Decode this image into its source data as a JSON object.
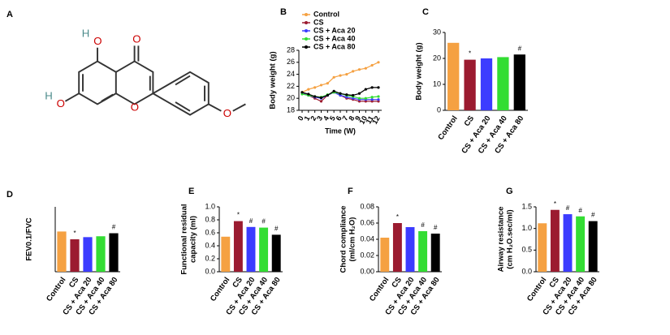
{
  "panel_labels": [
    "A",
    "B",
    "C",
    "D",
    "E",
    "F",
    "G"
  ],
  "structure": {
    "atoms": [
      "O",
      "O",
      "H",
      "O",
      "H",
      "O",
      "O"
    ]
  },
  "chart_data": [
    {
      "type": "line",
      "xlabel": "Time (W)",
      "ylabel": [
        "Body weight (g)"
      ],
      "x": [
        0,
        1,
        2,
        3,
        4,
        5,
        6,
        7,
        8,
        9,
        10,
        11,
        12
      ],
      "xlim": [
        0,
        12
      ],
      "xticks": [
        0,
        1,
        2,
        3,
        4,
        5,
        6,
        7,
        8,
        9,
        10,
        11,
        12
      ],
      "ylim": [
        18,
        28
      ],
      "yticks": [
        18,
        20,
        22,
        24,
        26,
        28
      ],
      "series": [
        {
          "name": "Control",
          "color": "#f5a142",
          "values": [
            21,
            21.5,
            21.8,
            22.2,
            22.5,
            23.5,
            23.8,
            24,
            24.5,
            24.8,
            25,
            25.5,
            26
          ]
        },
        {
          "name": "CS",
          "color": "#9b1b30",
          "values": [
            21,
            20.5,
            20,
            19.5,
            20.5,
            21,
            20.5,
            20,
            19.8,
            19.5,
            19.5,
            19.5,
            19.5
          ]
        },
        {
          "name": "CS + Aca 20",
          "color": "#3c3cff",
          "values": [
            20.8,
            20.5,
            20.2,
            20,
            20.5,
            21,
            20.5,
            20.2,
            20,
            19.8,
            19.8,
            19.8,
            19.8
          ]
        },
        {
          "name": "CS + Aca 40",
          "color": "#33dd33",
          "values": [
            20.7,
            20.5,
            20.3,
            20.2,
            20.6,
            21,
            20.8,
            20.5,
            20.3,
            20,
            20,
            20.2,
            20.3
          ]
        },
        {
          "name": "CS + Aca 80",
          "color": "#000000",
          "values": [
            21,
            20.7,
            20.3,
            20.1,
            20.5,
            21.2,
            20.8,
            20.6,
            20.5,
            20.8,
            21.5,
            21.8,
            21.8
          ]
        }
      ]
    },
    {
      "type": "bar",
      "ylabel": [
        "Body weight (g)"
      ],
      "categories": [
        "Control",
        "CS",
        "CS + Aca 20",
        "CS + Aca 40",
        "CS + Aca 80"
      ],
      "colors": [
        "#f5a142",
        "#9b1b30",
        "#3c3cff",
        "#33dd33",
        "#000000"
      ],
      "values": [
        26,
        19.5,
        20,
        20.5,
        21.5
      ],
      "annotations": [
        null,
        "*",
        null,
        null,
        "#"
      ],
      "ylim": [
        0,
        30
      ],
      "yticks": [
        0,
        10,
        20,
        30
      ]
    },
    {
      "type": "bar",
      "ylabel": [
        "FEV0.1/FVC"
      ],
      "categories": [
        "Control",
        "CS",
        "CS + Aca 20",
        "CS + Aca 40",
        "CS + Aca 80"
      ],
      "colors": [
        "#f5a142",
        "#9b1b30",
        "#3c3cff",
        "#33dd33",
        "#000000"
      ],
      "values": [
        0.93,
        0.75,
        0.8,
        0.82,
        0.89
      ],
      "annotations": [
        null,
        "*",
        null,
        null,
        "#"
      ],
      "ylim": [
        0,
        1.5
      ]
    },
    {
      "type": "bar",
      "ylabel": [
        "Functional residual",
        "capacity (ml)"
      ],
      "categories": [
        "Control",
        "CS",
        "CS + Aca 20",
        "CS + Aca 40",
        "CS + Aca 80"
      ],
      "colors": [
        "#f5a142",
        "#9b1b30",
        "#3c3cff",
        "#33dd33",
        "#000000"
      ],
      "values": [
        0.54,
        0.78,
        0.69,
        0.68,
        0.57
      ],
      "annotations": [
        null,
        "*",
        "#",
        "#",
        "#"
      ],
      "ylim": [
        0,
        1.0
      ],
      "yticks": [
        {
          "value": 0,
          "label": "0.0"
        },
        0.2,
        0.4,
        0.6,
        0.8,
        {
          "value": 1,
          "label": "1.0"
        }
      ]
    },
    {
      "type": "bar",
      "ylabel": [
        "Chord compliance",
        "(ml/cm H₂O)"
      ],
      "categories": [
        "Control",
        "CS",
        "CS + Aca 20",
        "CS + Aca 40",
        "CS + Aca 80"
      ],
      "colors": [
        "#f5a142",
        "#9b1b30",
        "#3c3cff",
        "#33dd33",
        "#000000"
      ],
      "values": [
        0.042,
        0.06,
        0.055,
        0.05,
        0.047
      ],
      "annotations": [
        null,
        "*",
        null,
        "#",
        "#"
      ],
      "ylim": [
        0,
        0.08
      ],
      "yticks": [
        {
          "value": 0,
          "label": "0.00"
        },
        0.02,
        0.04,
        0.06,
        {
          "value": 0.08,
          "label": "0.08"
        }
      ]
    },
    {
      "type": "bar",
      "ylabel": [
        "Airway resistance",
        "(cm H₂O.sec/ml)"
      ],
      "categories": [
        "Control",
        "CS",
        "CS + Aca 20",
        "CS + Aca 40",
        "CS + Aca 80"
      ],
      "colors": [
        "#f5a142",
        "#9b1b30",
        "#3c3cff",
        "#33dd33",
        "#000000"
      ],
      "values": [
        1.12,
        1.43,
        1.33,
        1.28,
        1.17
      ],
      "annotations": [
        null,
        "*",
        "#",
        "#",
        "#"
      ],
      "ylim": [
        0,
        1.5
      ],
      "yticks": [
        {
          "value": 0,
          "label": "0.0"
        },
        0.5,
        {
          "value": 1,
          "label": "1.0"
        },
        1.5
      ]
    }
  ]
}
